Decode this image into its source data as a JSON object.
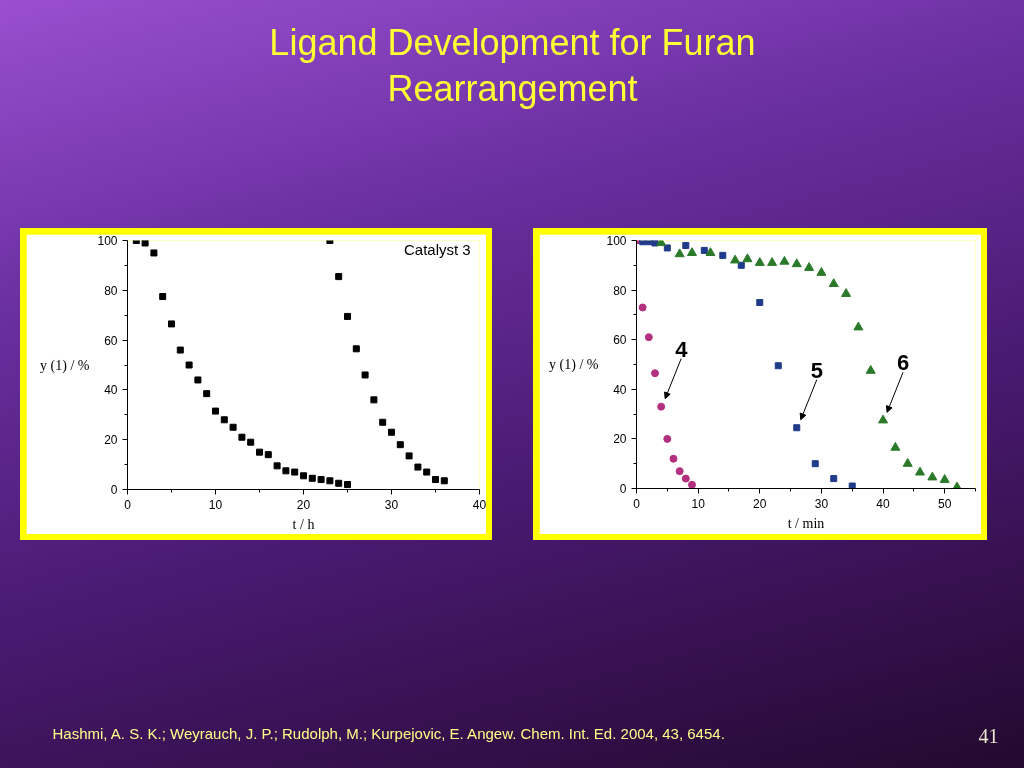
{
  "chart_data": [
    {
      "type": "scatter",
      "title": "Ligand Development for Furan Rearrangement",
      "xlabel": "t / h",
      "ylabel": "y (1) / %",
      "xlim": [
        0,
        40
      ],
      "ylim": [
        0,
        100
      ],
      "xticks": [
        0,
        {
          "value": 5,
          "label": null
        },
        10,
        {
          "value": 15,
          "label": null
        },
        20,
        {
          "value": 25,
          "label": null
        },
        30,
        {
          "value": 35,
          "label": null
        },
        40
      ],
      "yticks": [
        0,
        {
          "value": 10,
          "label": null
        },
        20,
        {
          "value": 30,
          "label": null
        },
        40,
        {
          "value": 50,
          "label": null
        },
        60,
        {
          "value": 70,
          "label": null
        },
        80,
        {
          "value": 90,
          "label": null
        },
        100
      ],
      "grid": false,
      "marker": "square",
      "annotations": [
        "Catalyst 3"
      ],
      "series": [
        {
          "color": "#000000",
          "x": [
            1,
            2,
            3,
            4,
            5,
            6,
            7,
            8,
            9,
            10,
            11,
            12,
            13,
            14,
            15,
            16,
            17,
            18,
            19,
            20,
            21,
            22,
            23,
            24,
            25
          ],
          "values": [
            100,
            99,
            95,
            77.5,
            66.5,
            56,
            50,
            44,
            38.5,
            31.5,
            28,
            25,
            21,
            19,
            15,
            14,
            9.5,
            7.5,
            7,
            5.5,
            4.5,
            4,
            3.5,
            2.5,
            2
          ]
        },
        {
          "color": "#000000",
          "x": [
            23,
            24,
            25,
            26,
            27,
            28,
            29,
            30,
            31,
            32,
            33,
            34,
            35,
            36
          ],
          "values": [
            100,
            85.5,
            69.5,
            56.5,
            46,
            36,
            27,
            23,
            18,
            13.5,
            9,
            7,
            4,
            3.5
          ]
        }
      ]
    },
    {
      "type": "scatter",
      "xlabel": "t / min",
      "ylabel": "y (1) / %",
      "xlim": [
        0,
        55
      ],
      "ylim": [
        0,
        100
      ],
      "xticks": [
        0,
        {
          "value": 5,
          "label": null
        },
        10,
        {
          "value": 15,
          "label": null
        },
        20,
        {
          "value": 25,
          "label": null
        },
        30,
        {
          "value": 35,
          "label": null
        },
        40,
        {
          "value": 45,
          "label": null
        },
        50,
        {
          "value": 55,
          "label": null
        }
      ],
      "yticks": [
        0,
        {
          "value": 10,
          "label": null
        },
        20,
        {
          "value": 30,
          "label": null
        },
        40,
        {
          "value": 50,
          "label": null
        },
        60,
        {
          "value": 70,
          "label": null
        },
        80,
        {
          "value": 90,
          "label": null
        },
        100
      ],
      "grid": false,
      "annotations": [
        "Hashmi, A. S. K.; Weyrauch, J. P.; Rudolph, M.; Kurpejovic, E. Angew. Chem. Int. Ed. 2004, 43, 6454.",
        "41"
      ],
      "series": [
        {
          "name": "4",
          "color": "#b3307f",
          "marker": "circle",
          "x": [
            0,
            1,
            2,
            3,
            4,
            5,
            6,
            7,
            8,
            9
          ],
          "values": [
            100,
            73,
            61,
            46.5,
            33,
            20,
            12,
            7,
            4,
            1.5
          ]
        },
        {
          "name": "5",
          "color": "#1f3b8a",
          "marker": "square",
          "x": [
            1,
            2,
            3,
            5,
            8,
            11,
            14,
            17,
            20,
            23,
            26,
            29,
            32,
            35
          ],
          "values": [
            99.5,
            99.5,
            99,
            97,
            98,
            96,
            94,
            90,
            75,
            49.5,
            24.5,
            10,
            4,
            1
          ]
        },
        {
          "name": "6",
          "color": "#2a7a2a",
          "marker": "triangle",
          "x": [
            4,
            7,
            9,
            12,
            16,
            18,
            20,
            22,
            24,
            26,
            28,
            30,
            32,
            34,
            36,
            38,
            40,
            42,
            44,
            46,
            48,
            50,
            52
          ],
          "values": [
            99,
            94.5,
            95,
            95,
            92,
            92.5,
            91,
            91,
            91.5,
            90.5,
            89,
            87,
            82.5,
            78.5,
            65,
            47.5,
            27.5,
            16.5,
            10,
            6.5,
            4.5,
            3.5,
            0.5
          ]
        }
      ]
    }
  ]
}
